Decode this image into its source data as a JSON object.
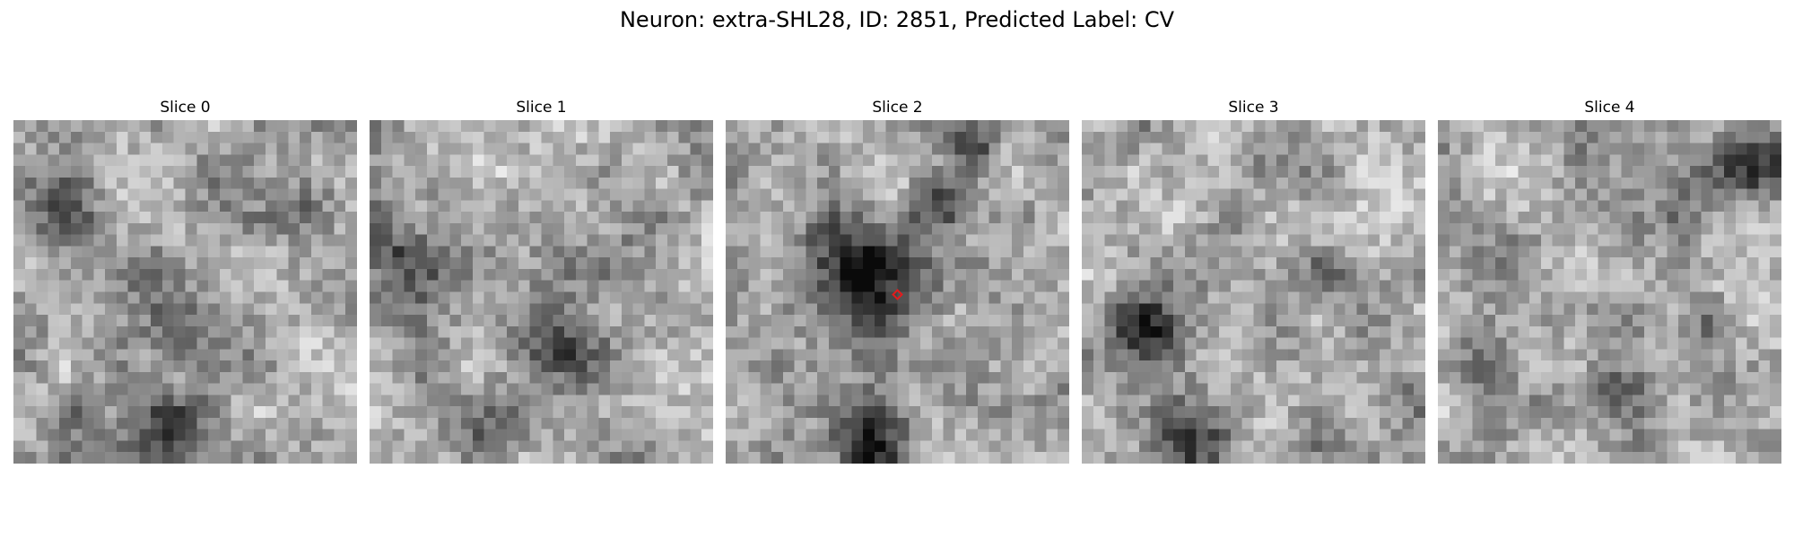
{
  "figure": {
    "title": "Neuron: extra-SHL28, ID: 2851, Predicted Label: CV"
  },
  "slices": [
    {
      "label": "Slice 0",
      "has_marker": false
    },
    {
      "label": "Slice 1",
      "has_marker": false
    },
    {
      "label": "Slice 2",
      "has_marker": true
    },
    {
      "label": "Slice 3",
      "has_marker": false
    },
    {
      "label": "Slice 4",
      "has_marker": false
    }
  ],
  "colors": {
    "marker": "#e41a1c",
    "colormap": "gray"
  }
}
